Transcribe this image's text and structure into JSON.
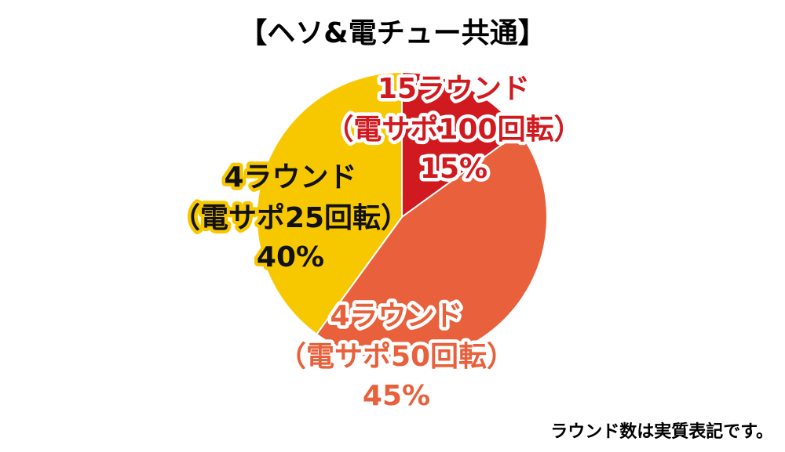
{
  "chart_data": {
    "type": "pie",
    "title": "【ヘソ&電チュー共通】",
    "categories": [
      "15ラウンド",
      "4ラウンド",
      "4ラウンド"
    ],
    "sublabels": [
      "（電サポ100回転）",
      "（電サポ50回転）",
      "（電サポ25回転）"
    ],
    "values": [
      15,
      45,
      40
    ],
    "value_labels": [
      "15%",
      "45%",
      "40%"
    ],
    "colors": [
      "#d11a1f",
      "#e8603c",
      "#f7c800"
    ],
    "note": "ラウンド数は実質表記です。"
  }
}
